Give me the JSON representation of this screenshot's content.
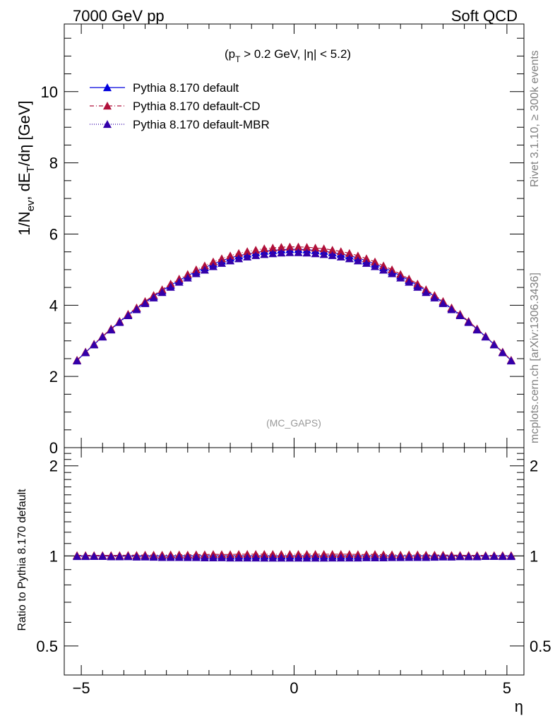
{
  "header": {
    "left": "7000 GeV pp",
    "right": "Soft QCD"
  },
  "side_text": {
    "rivet": "Rivet 3.1.10, ≥ 300k events",
    "mcplots": "mcplots.cern.ch [arXiv:1306.3436]"
  },
  "main_panel": {
    "cut_label_prefix": "(p",
    "cut_label_sub": "T",
    "cut_label_suffix": " > 0.2 GeV, |η| < 5.2)",
    "watermark": "(MC_GAPS)",
    "ylabel_parts": [
      "1/N",
      "ev",
      ", dE",
      "T",
      "/dη [GeV]"
    ],
    "ylim": [
      0,
      11.9
    ],
    "yticks": [
      0,
      2,
      4,
      6,
      8,
      10
    ],
    "ytick_labels": [
      "0",
      "2",
      "4",
      "6",
      "8",
      "10"
    ]
  },
  "ratio_panel": {
    "ylabel": "Ratio to Pythia 8.170 default",
    "yticks": [
      0.5,
      1,
      2
    ],
    "ytick_labels": [
      "0.5",
      "1",
      "2"
    ],
    "ytick_labels_right": [
      "0.5",
      "1",
      "2"
    ],
    "ylim": [
      0.4,
      2.3
    ]
  },
  "xaxis": {
    "label": "η",
    "xlim": [
      -5.4,
      5.4
    ],
    "xticks": [
      -5,
      0,
      5
    ],
    "xtick_labels": [
      "−5",
      "0",
      "5"
    ]
  },
  "legend": [
    {
      "label": "Pythia 8.170 default",
      "color": "#0000dd",
      "dash": "none"
    },
    {
      "label": "Pythia 8.170 default-CD",
      "color": "#b0103a",
      "dash": "6,3,1,3"
    },
    {
      "label": "Pythia 8.170 default-MBR",
      "color": "#3300aa",
      "dash": "1,2"
    }
  ],
  "chart_data": {
    "type": "line",
    "x": [
      -5.1,
      -4.9,
      -4.7,
      -4.5,
      -4.3,
      -4.1,
      -3.9,
      -3.7,
      -3.5,
      -3.3,
      -3.1,
      -2.9,
      -2.7,
      -2.5,
      -2.3,
      -2.1,
      -1.9,
      -1.7,
      -1.5,
      -1.3,
      -1.1,
      -0.9,
      -0.7,
      -0.5,
      -0.3,
      -0.1,
      0.1,
      0.3,
      0.5,
      0.7,
      0.9,
      1.1,
      1.3,
      1.5,
      1.7,
      1.9,
      2.1,
      2.3,
      2.5,
      2.7,
      2.9,
      3.1,
      3.3,
      3.5,
      3.7,
      3.9,
      4.1,
      4.3,
      4.5,
      4.7,
      4.9,
      5.1
    ],
    "series": [
      {
        "name": "Pythia 8.170 default",
        "values": [
          2.45,
          2.68,
          2.9,
          3.12,
          3.33,
          3.54,
          3.73,
          3.91,
          4.08,
          4.25,
          4.41,
          4.56,
          4.7,
          4.83,
          4.95,
          5.06,
          5.16,
          5.25,
          5.33,
          5.39,
          5.44,
          5.48,
          5.52,
          5.54,
          5.56,
          5.57,
          5.57,
          5.56,
          5.54,
          5.52,
          5.48,
          5.44,
          5.39,
          5.33,
          5.25,
          5.16,
          5.06,
          4.95,
          4.83,
          4.7,
          4.56,
          4.41,
          4.25,
          4.08,
          3.91,
          3.73,
          3.54,
          3.33,
          3.12,
          2.9,
          2.68,
          2.45
        ],
        "ratio": [
          1.0,
          1.0,
          1.0,
          1.0,
          1.0,
          1.0,
          1.0,
          1.0,
          1.0,
          1.0,
          1.0,
          1.0,
          1.0,
          1.0,
          1.0,
          1.0,
          1.0,
          1.0,
          1.0,
          1.0,
          1.0,
          1.0,
          1.0,
          1.0,
          1.0,
          1.0,
          1.0,
          1.0,
          1.0,
          1.0,
          1.0,
          1.0,
          1.0,
          1.0,
          1.0,
          1.0,
          1.0,
          1.0,
          1.0,
          1.0,
          1.0,
          1.0,
          1.0,
          1.0,
          1.0,
          1.0,
          1.0,
          1.0,
          1.0,
          1.0,
          1.0,
          1.0
        ]
      },
      {
        "name": "Pythia 8.170 default-CD",
        "values": [
          2.46,
          2.69,
          2.91,
          3.13,
          3.34,
          3.55,
          3.75,
          3.93,
          4.11,
          4.28,
          4.44,
          4.6,
          4.74,
          4.87,
          5.0,
          5.11,
          5.22,
          5.31,
          5.39,
          5.46,
          5.51,
          5.55,
          5.59,
          5.61,
          5.63,
          5.64,
          5.64,
          5.63,
          5.61,
          5.59,
          5.55,
          5.51,
          5.46,
          5.39,
          5.31,
          5.22,
          5.11,
          5.0,
          4.87,
          4.74,
          4.6,
          4.44,
          4.28,
          4.11,
          3.93,
          3.75,
          3.55,
          3.34,
          3.13,
          2.91,
          2.69,
          2.46
        ],
        "ratio": [
          1.004,
          1.004,
          1.004,
          1.004,
          1.004,
          1.004,
          1.005,
          1.005,
          1.007,
          1.007,
          1.007,
          1.009,
          1.009,
          1.008,
          1.01,
          1.01,
          1.012,
          1.011,
          1.011,
          1.013,
          1.013,
          1.013,
          1.013,
          1.013,
          1.013,
          1.013,
          1.013,
          1.013,
          1.013,
          1.013,
          1.013,
          1.013,
          1.013,
          1.011,
          1.011,
          1.012,
          1.01,
          1.01,
          1.008,
          1.009,
          1.009,
          1.007,
          1.007,
          1.007,
          1.005,
          1.005,
          1.004,
          1.004,
          1.004,
          1.004,
          1.004,
          1.004
        ]
      },
      {
        "name": "Pythia 8.170 default-MBR",
        "values": [
          2.44,
          2.67,
          2.89,
          3.11,
          3.31,
          3.52,
          3.71,
          3.88,
          4.05,
          4.21,
          4.36,
          4.51,
          4.65,
          4.77,
          4.89,
          4.99,
          5.09,
          5.18,
          5.25,
          5.31,
          5.36,
          5.4,
          5.43,
          5.45,
          5.47,
          5.48,
          5.48,
          5.47,
          5.45,
          5.43,
          5.4,
          5.36,
          5.31,
          5.25,
          5.18,
          5.09,
          4.99,
          4.89,
          4.77,
          4.65,
          4.51,
          4.36,
          4.21,
          4.05,
          3.88,
          3.71,
          3.52,
          3.31,
          3.11,
          2.89,
          2.67,
          2.44
        ],
        "ratio": [
          0.996,
          0.996,
          0.997,
          0.997,
          0.994,
          0.994,
          0.995,
          0.992,
          0.993,
          0.991,
          0.989,
          0.989,
          0.989,
          0.988,
          0.988,
          0.986,
          0.986,
          0.987,
          0.985,
          0.985,
          0.985,
          0.985,
          0.984,
          0.984,
          0.984,
          0.984,
          0.984,
          0.984,
          0.984,
          0.984,
          0.985,
          0.985,
          0.985,
          0.985,
          0.987,
          0.986,
          0.986,
          0.988,
          0.988,
          0.989,
          0.989,
          0.989,
          0.991,
          0.993,
          0.992,
          0.995,
          0.994,
          0.994,
          0.997,
          0.997,
          0.996,
          0.996
        ]
      }
    ]
  }
}
